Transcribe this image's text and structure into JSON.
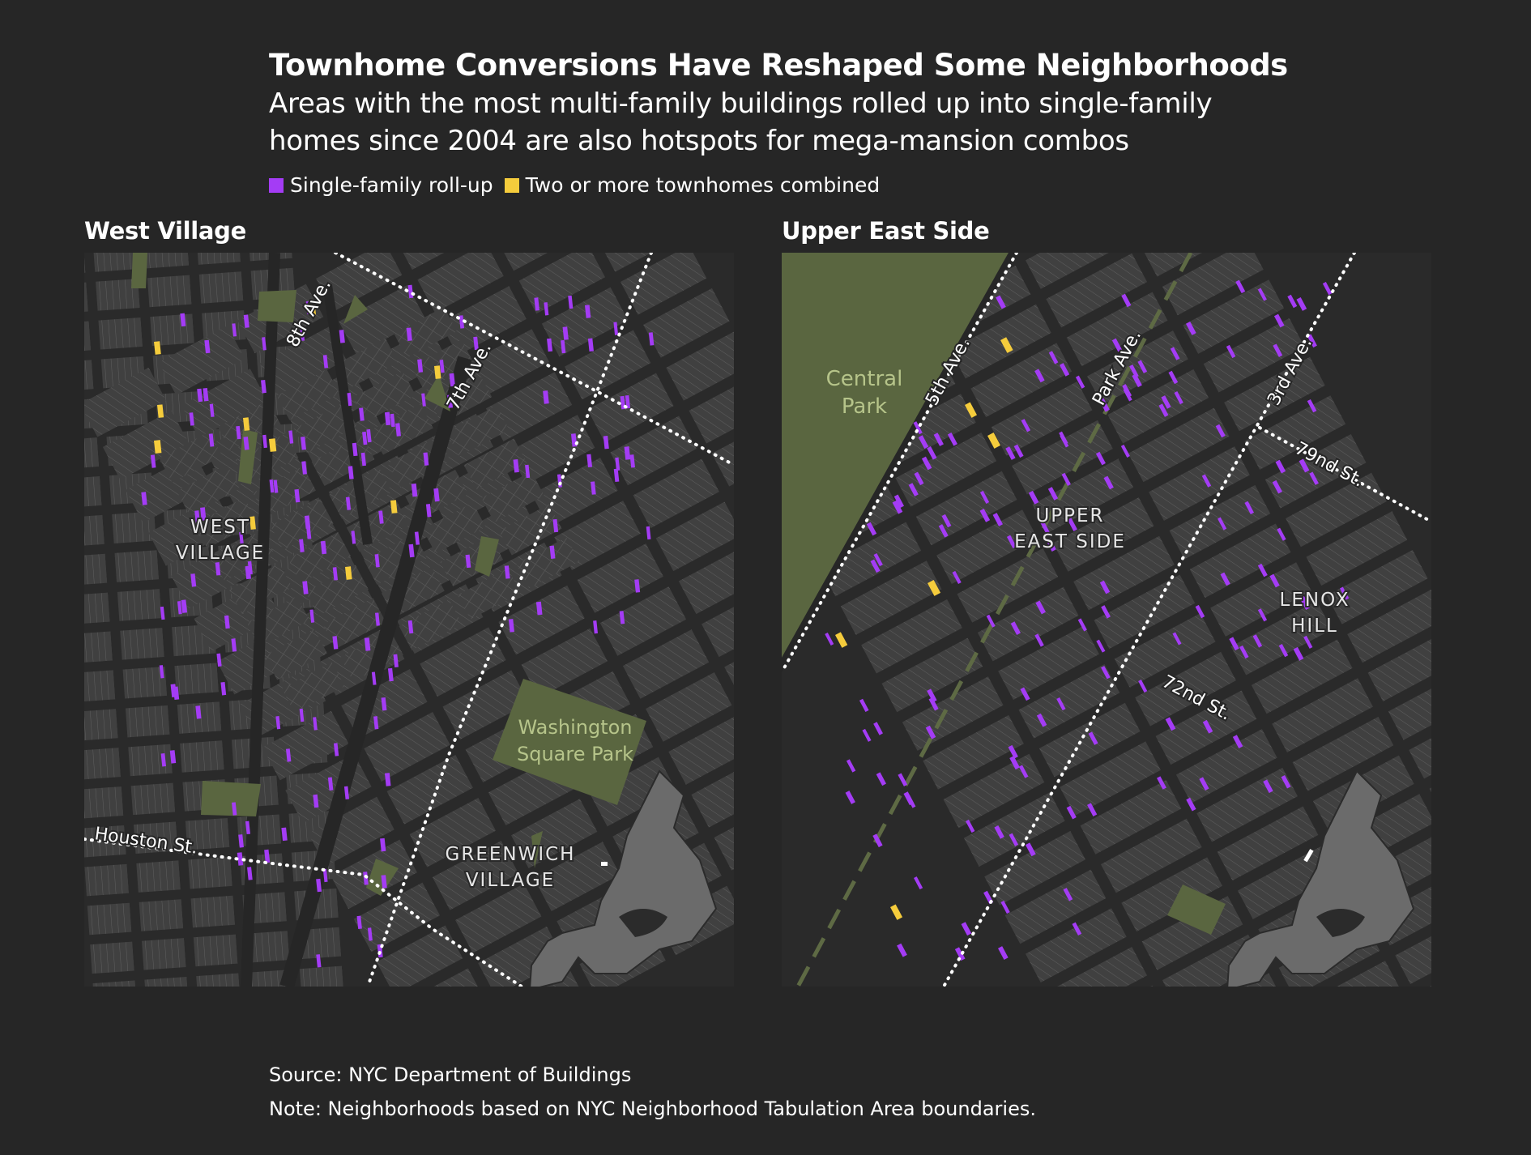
{
  "title": "Townhome Conversions Have Reshaped Some Neighborhoods",
  "subtitle_line1": "Areas with the most multi-family buildings rolled up into single-family",
  "subtitle_line2": "homes since 2004 are also hotspots for mega-mansion combos",
  "legend": [
    {
      "label": "Single-family roll-up",
      "color": "#a43cf5"
    },
    {
      "label": "Two or more townhomes combined",
      "color": "#f5cc3c"
    }
  ],
  "colors": {
    "background": "#262626",
    "street": "#262626",
    "block": "#404040",
    "lot_line": "#6a6a6a",
    "park": "#5a6640",
    "park_label": "#b6c48a",
    "rollup": "#a43cf5",
    "combined": "#f5cc3c",
    "inset_land": "#6b6b6b"
  },
  "panels": [
    {
      "title": "West Village",
      "street_labels": [
        "8th Ave.",
        "7th Ave.",
        "Houston St."
      ],
      "neighborhood_labels": [
        [
          "WEST",
          "VILLAGE"
        ],
        [
          "GREENWICH",
          "VILLAGE"
        ]
      ],
      "park_labels": [
        [
          "Washington",
          "Square Park"
        ]
      ]
    },
    {
      "title": "Upper East Side",
      "street_labels": [
        "5th Ave.",
        "Park Ave.",
        "3rd Ave.",
        "79nd St.",
        "72nd St."
      ],
      "neighborhood_labels": [
        [
          "UPPER",
          "EAST SIDE"
        ],
        [
          "LENOX",
          "HILL"
        ]
      ],
      "park_labels": [
        [
          "Central",
          "Park"
        ]
      ]
    }
  ],
  "source": "Source: NYC Department of Buildings",
  "note": "Note: Neighborhoods based on NYC Neighborhood Tabulation Area boundaries."
}
